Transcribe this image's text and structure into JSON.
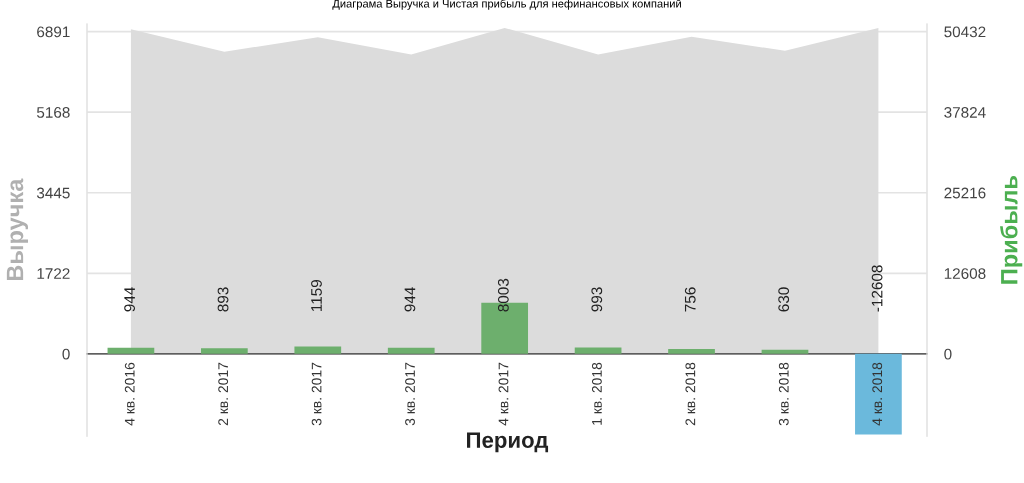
{
  "chart_data": {
    "type": "bar",
    "title": "Диаграма Выручка и Чистая прибыль для нефинансовых компаний",
    "xlabel": "Период",
    "ylabel": "Выручка",
    "y2label": "Прибыль",
    "categories": [
      "4 кв. 2016",
      "2 кв. 2017",
      "3 кв. 2017",
      "3 кв. 2017",
      "4 кв. 2017",
      "1 кв. 2018",
      "2 кв. 2018",
      "3 кв. 2018",
      "4 кв. 2018"
    ],
    "series": [
      {
        "type": "area",
        "color": "#dcdcdc",
        "values": [
          6940,
          6460,
          6770,
          6400,
          6970,
          6400,
          6780,
          6480,
          6970
        ]
      },
      {
        "axis": "y2",
        "colors": [
          "#6daf6d",
          "#6daf6d",
          "#6daf6d",
          "#6daf6d",
          "#6daf6d",
          "#6daf6d",
          "#6daf6d",
          "#6daf6d",
          "#6bb9dc"
        ],
        "values": [
          944,
          893,
          1159,
          944,
          8003,
          993,
          756,
          630,
          -12608
        ],
        "value_labels": [
          "944",
          "893",
          "1159",
          "944",
          "8003",
          "993",
          "756",
          "630",
          "-12608"
        ]
      }
    ],
    "ylim": [
      -1760,
      7050
    ],
    "yticks": [
      0,
      1722,
      3445,
      5168,
      6891
    ],
    "y2lim": [
      -12880,
      51596
    ],
    "y2ticks": [
      0,
      12608,
      25216,
      37824,
      50432
    ],
    "grid": "y"
  }
}
